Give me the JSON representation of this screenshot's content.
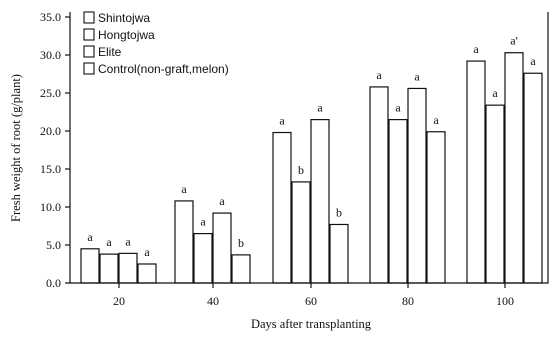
{
  "chart_data": {
    "type": "bar",
    "title": "",
    "xlabel": "Days after transplanting",
    "ylabel": "Fresh weight of root (g/plant)",
    "ylim": [
      0,
      35
    ],
    "yticks": [
      "0.0",
      "5.0",
      "10.0",
      "15.0",
      "20.0",
      "25.0",
      "30.0",
      "35.0"
    ],
    "categories": [
      "20",
      "40",
      "60",
      "80",
      "100"
    ],
    "legend_position": "top-left",
    "series": [
      {
        "name": "Shintojwa",
        "values": [
          4.5,
          10.8,
          19.8,
          25.8,
          29.2
        ],
        "letters": [
          "a",
          "a",
          "a",
          "a",
          "a"
        ]
      },
      {
        "name": "Hongtojwa",
        "values": [
          3.8,
          6.5,
          13.3,
          21.5,
          23.4
        ],
        "letters": [
          "a",
          "a",
          "b",
          "a",
          "a"
        ]
      },
      {
        "name": "Elite",
        "values": [
          3.9,
          9.2,
          21.5,
          25.6,
          30.3
        ],
        "letters": [
          "a",
          "a",
          "a",
          "a",
          "a'"
        ]
      },
      {
        "name": "Control(non-graft,melon)",
        "values": [
          2.5,
          3.7,
          7.7,
          19.9,
          27.6
        ],
        "letters": [
          "a",
          "b",
          "b",
          "a",
          "a"
        ]
      }
    ]
  }
}
